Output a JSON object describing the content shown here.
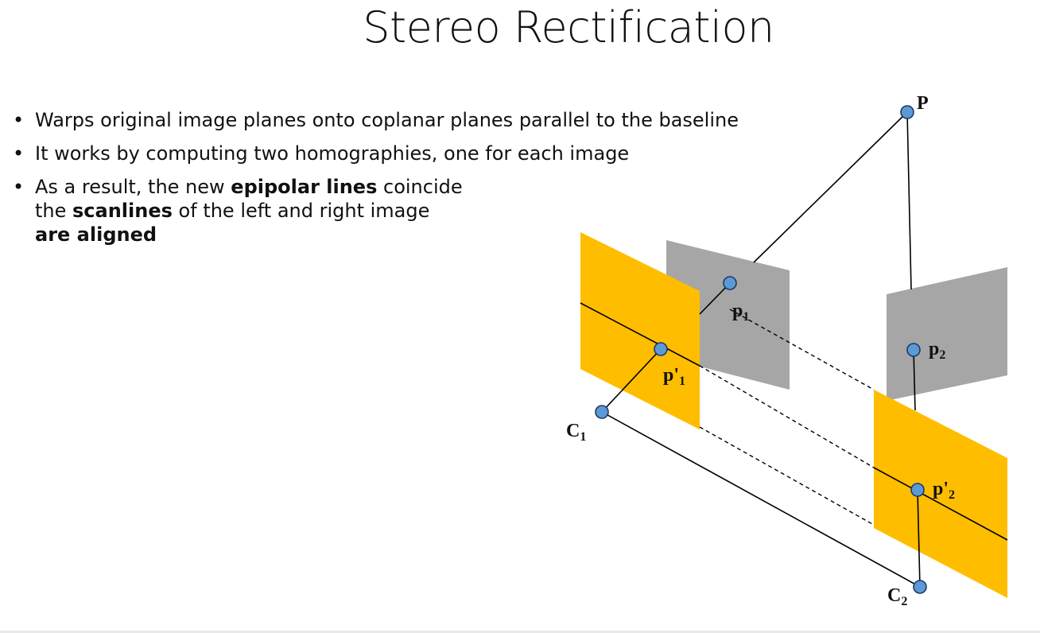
{
  "title": "Stereo Rectification",
  "bullets": [
    {
      "parts": [
        {
          "text": "Warps original image planes onto coplanar planes parallel to the baseline",
          "bold": false
        }
      ]
    },
    {
      "parts": [
        {
          "text": "It works by computing two homographies, one for each image",
          "bold": false
        }
      ]
    },
    {
      "lines": [
        [
          {
            "text": "As a result, the new ",
            "bold": false
          },
          {
            "text": "epipolar lines",
            "bold": true
          },
          {
            "text": " coincide",
            "bold": false
          }
        ],
        [
          {
            "text": "the ",
            "bold": false
          },
          {
            "text": "scanlines",
            "bold": true
          },
          {
            "text": " of the left and right image",
            "bold": false
          }
        ],
        [
          {
            "text": "are aligned",
            "bold": true
          }
        ]
      ]
    }
  ],
  "bullet_glyph": "•",
  "diagram": {
    "colors": {
      "rectified_plane": "#FFBD00",
      "original_plane": "#A6A6A6",
      "point_fill": "#5B9BD5",
      "point_stroke": "#1F3864",
      "line": "#000000"
    },
    "labels": {
      "P": "P",
      "p1": {
        "base": "p",
        "sub": "1"
      },
      "p2": {
        "base": "p",
        "sub": "2"
      },
      "p1_prime": {
        "base": "p'",
        "sub": "1"
      },
      "p2_prime": {
        "base": "p'",
        "sub": "2"
      },
      "C1": {
        "base": "C",
        "sub": "1"
      },
      "C2": {
        "base": "C",
        "sub": "2"
      }
    }
  }
}
